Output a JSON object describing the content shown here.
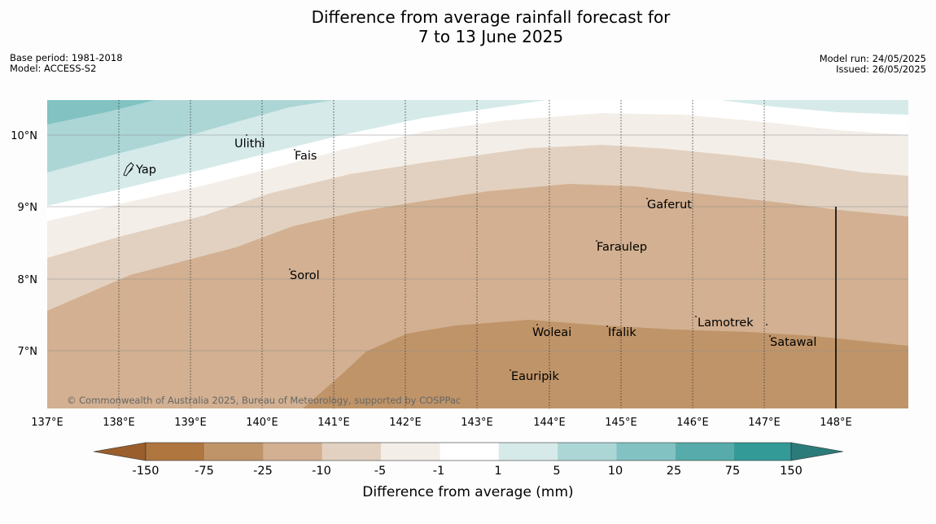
{
  "title_line1": "Difference from average rainfall forecast for",
  "title_line2": "7 to 13 June 2025",
  "meta": {
    "base_period": "Base period: 1981-2018",
    "model": "Model: ACCESS-S2",
    "model_run": "Model run: 24/05/2025",
    "issued": "Issued: 26/05/2025"
  },
  "map": {
    "lon_ticks": [
      "137°E",
      "138°E",
      "139°E",
      "140°E",
      "141°E",
      "142°E",
      "143°E",
      "144°E",
      "145°E",
      "146°E",
      "147°E",
      "148°E"
    ],
    "lat_ticks": [
      "10°N",
      "9°N",
      "8°N",
      "7°N"
    ],
    "places": [
      "Yap",
      "Ulithi",
      "Fais",
      "Gaferut",
      "Faraulep",
      "Sorol",
      "Lamotrek",
      "Woleai",
      "Ifalik",
      "Satawal",
      "Eauripik"
    ],
    "copyright": "© Commonwealth of Australia 2025, Bureau of Meteorology, supported by COSPPac"
  },
  "legend": {
    "title": "Difference from average (mm)",
    "ticks": [
      "-150",
      "-75",
      "-25",
      "-10",
      "-5",
      "-1",
      "1",
      "5",
      "10",
      "25",
      "75",
      "150"
    ],
    "colors": [
      "#9a5e2c",
      "#b07640",
      "#bf9468",
      "#d2b091",
      "#e2d1c0",
      "#f4eee8",
      "#ffffff",
      "#d6eaea",
      "#acd6d6",
      "#82c2c2",
      "#57acab",
      "#339a98",
      "#2b7b7a"
    ]
  }
}
